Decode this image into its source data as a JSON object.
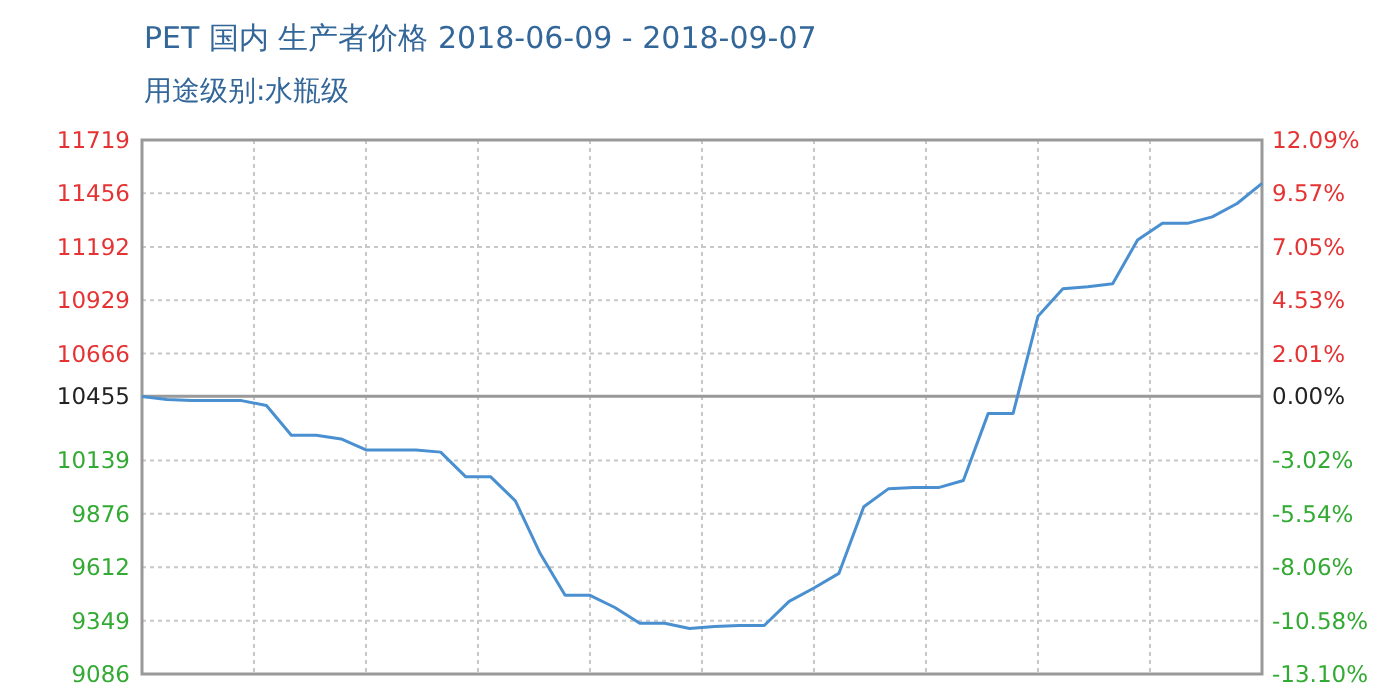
{
  "chart_data": {
    "type": "line",
    "title": "PET 国内 生产者价格 2018-06-09 - 2018-09-07",
    "subtitle": "用途级别:水瓶级",
    "categories": [
      null,
      null,
      null,
      null,
      null,
      null,
      null,
      null,
      null,
      null,
      null,
      null,
      null,
      null,
      null,
      null,
      null,
      null,
      null,
      null,
      null,
      null,
      null,
      null,
      null,
      null,
      null,
      null,
      null,
      null,
      null,
      null,
      null,
      null,
      null,
      null,
      null,
      null,
      null,
      null,
      null,
      null,
      null,
      null,
      null,
      null
    ],
    "series": [
      {
        "color": "#4a90d0",
        "values": [
          10454,
          10440,
          10434,
          10434,
          10434,
          10410,
          10263,
          10263,
          10245,
          10191,
          10191,
          10191,
          10180,
          10059,
          10059,
          9940,
          9680,
          9474,
          9474,
          9414,
          9336,
          9336,
          9310,
          9320,
          9325,
          9325,
          9444,
          9510,
          9582,
          9911,
          10000,
          10005,
          10005,
          10040,
          10371,
          10371,
          10850,
          10985,
          10995,
          11010,
          11226,
          11308,
          11308,
          11340,
          11406,
          11505
        ]
      }
    ],
    "ylim": [
      9086,
      11719
    ],
    "yticks": [
      9086,
      9349,
      9612,
      9876,
      10139,
      10455,
      10666,
      10929,
      11192,
      11456,
      11719
    ],
    "y2lim": [
      -13.1,
      12.09
    ],
    "y2ticks": [
      {
        "value": -13.1,
        "label": "-13.10%"
      },
      {
        "value": -10.58,
        "label": "-10.58%"
      },
      {
        "value": -8.06,
        "label": "-8.06%"
      },
      {
        "value": -5.54,
        "label": "-5.54%"
      },
      {
        "value": -3.02,
        "label": "-3.02%"
      },
      {
        "value": 0,
        "label": "0.00%"
      },
      {
        "value": 2.01,
        "label": "2.01%"
      },
      {
        "value": 4.53,
        "label": "4.53%"
      },
      {
        "value": 7.05,
        "label": "7.05%"
      },
      {
        "value": 9.57,
        "label": "9.57%"
      },
      {
        "value": 12.09,
        "label": "12.09%"
      }
    ],
    "ref_lines": [
      {
        "axis": "y",
        "value": 10455,
        "color": "#999999"
      }
    ],
    "grid": true,
    "marker": "none",
    "line_style": "solid"
  }
}
